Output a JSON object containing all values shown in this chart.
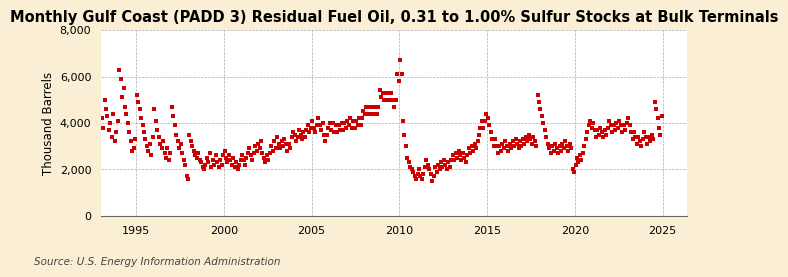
{
  "title": "Monthly Gulf Coast (PADD 3) Residual Fuel Oil, 0.31 to 1.00% Sulfur Stocks at Bulk Terminals",
  "ylabel": "Thousand Barrels",
  "source": "Source: U.S. Energy Information Administration",
  "figure_bg": "#faefd4",
  "plot_bg": "#ffffff",
  "marker_color": "#cc0000",
  "ylim": [
    0,
    8000
  ],
  "yticks": [
    0,
    2000,
    4000,
    6000,
    8000
  ],
  "xticks_years": [
    1995,
    2000,
    2005,
    2010,
    2015,
    2020,
    2025
  ],
  "xlim_start": 1993,
  "xlim_end": 2026,
  "title_fontsize": 10.5,
  "ylabel_fontsize": 8.5,
  "tick_fontsize": 8,
  "source_fontsize": 7.5,
  "data": [
    [
      1993,
      1,
      4200
    ],
    [
      1993,
      2,
      3800
    ],
    [
      1993,
      3,
      5000
    ],
    [
      1993,
      4,
      4600
    ],
    [
      1993,
      5,
      4300
    ],
    [
      1993,
      6,
      3700
    ],
    [
      1993,
      7,
      4000
    ],
    [
      1993,
      8,
      3400
    ],
    [
      1993,
      9,
      4400
    ],
    [
      1993,
      10,
      3200
    ],
    [
      1993,
      11,
      3600
    ],
    [
      1993,
      12,
      4100
    ],
    [
      1994,
      1,
      6300
    ],
    [
      1994,
      2,
      5900
    ],
    [
      1994,
      3,
      5100
    ],
    [
      1994,
      4,
      5500
    ],
    [
      1994,
      5,
      4700
    ],
    [
      1994,
      6,
      4400
    ],
    [
      1994,
      7,
      4000
    ],
    [
      1994,
      8,
      3600
    ],
    [
      1994,
      9,
      3200
    ],
    [
      1994,
      10,
      2800
    ],
    [
      1994,
      11,
      2900
    ],
    [
      1994,
      12,
      3300
    ],
    [
      1995,
      1,
      5200
    ],
    [
      1995,
      2,
      4900
    ],
    [
      1995,
      3,
      4600
    ],
    [
      1995,
      4,
      4200
    ],
    [
      1995,
      5,
      3900
    ],
    [
      1995,
      6,
      3600
    ],
    [
      1995,
      7,
      3300
    ],
    [
      1995,
      8,
      3000
    ],
    [
      1995,
      9,
      2800
    ],
    [
      1995,
      10,
      3100
    ],
    [
      1995,
      11,
      2600
    ],
    [
      1995,
      12,
      3400
    ],
    [
      1996,
      1,
      4600
    ],
    [
      1996,
      2,
      4100
    ],
    [
      1996,
      3,
      3700
    ],
    [
      1996,
      4,
      3400
    ],
    [
      1996,
      5,
      3100
    ],
    [
      1996,
      6,
      2900
    ],
    [
      1996,
      7,
      3200
    ],
    [
      1996,
      8,
      2700
    ],
    [
      1996,
      9,
      2500
    ],
    [
      1996,
      10,
      2900
    ],
    [
      1996,
      11,
      2400
    ],
    [
      1996,
      12,
      2700
    ],
    [
      1997,
      1,
      4700
    ],
    [
      1997,
      2,
      4300
    ],
    [
      1997,
      3,
      3900
    ],
    [
      1997,
      4,
      3500
    ],
    [
      1997,
      5,
      3200
    ],
    [
      1997,
      6,
      2900
    ],
    [
      1997,
      7,
      3100
    ],
    [
      1997,
      8,
      2700
    ],
    [
      1997,
      9,
      2400
    ],
    [
      1997,
      10,
      2200
    ],
    [
      1997,
      11,
      1700
    ],
    [
      1997,
      12,
      1600
    ],
    [
      1998,
      1,
      3500
    ],
    [
      1998,
      2,
      3200
    ],
    [
      1998,
      3,
      3000
    ],
    [
      1998,
      4,
      2800
    ],
    [
      1998,
      5,
      2600
    ],
    [
      1998,
      6,
      2500
    ],
    [
      1998,
      7,
      2700
    ],
    [
      1998,
      8,
      2400
    ],
    [
      1998,
      9,
      2300
    ],
    [
      1998,
      10,
      2100
    ],
    [
      1998,
      11,
      2000
    ],
    [
      1998,
      12,
      2200
    ],
    [
      1999,
      1,
      2500
    ],
    [
      1999,
      2,
      2300
    ],
    [
      1999,
      3,
      2700
    ],
    [
      1999,
      4,
      2100
    ],
    [
      1999,
      5,
      2400
    ],
    [
      1999,
      6,
      2200
    ],
    [
      1999,
      7,
      2600
    ],
    [
      1999,
      8,
      2300
    ],
    [
      1999,
      9,
      2100
    ],
    [
      1999,
      10,
      2400
    ],
    [
      1999,
      11,
      2200
    ],
    [
      1999,
      12,
      2600
    ],
    [
      2000,
      1,
      2800
    ],
    [
      2000,
      2,
      2500
    ],
    [
      2000,
      3,
      2300
    ],
    [
      2000,
      4,
      2600
    ],
    [
      2000,
      5,
      2400
    ],
    [
      2000,
      6,
      2200
    ],
    [
      2000,
      7,
      2500
    ],
    [
      2000,
      8,
      2100
    ],
    [
      2000,
      9,
      2300
    ],
    [
      2000,
      10,
      2000
    ],
    [
      2000,
      11,
      2200
    ],
    [
      2000,
      12,
      2400
    ],
    [
      2001,
      1,
      2600
    ],
    [
      2001,
      2,
      2400
    ],
    [
      2001,
      3,
      2200
    ],
    [
      2001,
      4,
      2500
    ],
    [
      2001,
      5,
      2700
    ],
    [
      2001,
      6,
      2900
    ],
    [
      2001,
      7,
      2600
    ],
    [
      2001,
      8,
      2400
    ],
    [
      2001,
      9,
      2700
    ],
    [
      2001,
      10,
      3000
    ],
    [
      2001,
      11,
      2800
    ],
    [
      2001,
      12,
      3100
    ],
    [
      2002,
      1,
      2900
    ],
    [
      2002,
      2,
      3200
    ],
    [
      2002,
      3,
      2700
    ],
    [
      2002,
      4,
      2500
    ],
    [
      2002,
      5,
      2300
    ],
    [
      2002,
      6,
      2600
    ],
    [
      2002,
      7,
      2400
    ],
    [
      2002,
      8,
      2700
    ],
    [
      2002,
      9,
      3000
    ],
    [
      2002,
      10,
      2800
    ],
    [
      2002,
      11,
      3200
    ],
    [
      2002,
      12,
      2900
    ],
    [
      2003,
      1,
      3400
    ],
    [
      2003,
      2,
      3100
    ],
    [
      2003,
      3,
      2900
    ],
    [
      2003,
      4,
      3200
    ],
    [
      2003,
      5,
      3000
    ],
    [
      2003,
      6,
      3300
    ],
    [
      2003,
      7,
      3100
    ],
    [
      2003,
      8,
      2800
    ],
    [
      2003,
      9,
      3100
    ],
    [
      2003,
      10,
      2900
    ],
    [
      2003,
      11,
      3400
    ],
    [
      2003,
      12,
      3600
    ],
    [
      2004,
      1,
      3500
    ],
    [
      2004,
      2,
      3200
    ],
    [
      2004,
      3,
      3400
    ],
    [
      2004,
      4,
      3700
    ],
    [
      2004,
      5,
      3500
    ],
    [
      2004,
      6,
      3300
    ],
    [
      2004,
      7,
      3600
    ],
    [
      2004,
      8,
      3400
    ],
    [
      2004,
      9,
      3700
    ],
    [
      2004,
      10,
      3900
    ],
    [
      2004,
      11,
      3600
    ],
    [
      2004,
      12,
      3800
    ],
    [
      2005,
      1,
      4100
    ],
    [
      2005,
      2,
      3800
    ],
    [
      2005,
      3,
      3600
    ],
    [
      2005,
      4,
      3900
    ],
    [
      2005,
      5,
      4200
    ],
    [
      2005,
      6,
      3900
    ],
    [
      2005,
      7,
      3700
    ],
    [
      2005,
      8,
      4000
    ],
    [
      2005,
      9,
      3500
    ],
    [
      2005,
      10,
      3200
    ],
    [
      2005,
      11,
      3500
    ],
    [
      2005,
      12,
      3800
    ],
    [
      2006,
      1,
      4000
    ],
    [
      2006,
      2,
      3700
    ],
    [
      2006,
      3,
      4000
    ],
    [
      2006,
      4,
      3600
    ],
    [
      2006,
      5,
      3900
    ],
    [
      2006,
      6,
      3600
    ],
    [
      2006,
      7,
      3900
    ],
    [
      2006,
      8,
      3700
    ],
    [
      2006,
      9,
      4000
    ],
    [
      2006,
      10,
      3700
    ],
    [
      2006,
      11,
      4000
    ],
    [
      2006,
      12,
      3800
    ],
    [
      2007,
      1,
      4100
    ],
    [
      2007,
      2,
      3900
    ],
    [
      2007,
      3,
      4200
    ],
    [
      2007,
      4,
      3800
    ],
    [
      2007,
      5,
      4100
    ],
    [
      2007,
      6,
      3800
    ],
    [
      2007,
      7,
      4100
    ],
    [
      2007,
      8,
      3900
    ],
    [
      2007,
      9,
      4200
    ],
    [
      2007,
      10,
      3900
    ],
    [
      2007,
      11,
      4200
    ],
    [
      2007,
      12,
      4500
    ],
    [
      2008,
      1,
      4400
    ],
    [
      2008,
      2,
      4700
    ],
    [
      2008,
      3,
      4400
    ],
    [
      2008,
      4,
      4700
    ],
    [
      2008,
      5,
      4400
    ],
    [
      2008,
      6,
      4700
    ],
    [
      2008,
      7,
      4400
    ],
    [
      2008,
      8,
      4700
    ],
    [
      2008,
      9,
      4400
    ],
    [
      2008,
      10,
      4700
    ],
    [
      2008,
      11,
      5400
    ],
    [
      2008,
      12,
      5100
    ],
    [
      2009,
      1,
      5300
    ],
    [
      2009,
      2,
      5000
    ],
    [
      2009,
      3,
      5300
    ],
    [
      2009,
      4,
      5000
    ],
    [
      2009,
      5,
      5300
    ],
    [
      2009,
      6,
      5000
    ],
    [
      2009,
      7,
      5300
    ],
    [
      2009,
      8,
      5000
    ],
    [
      2009,
      9,
      4700
    ],
    [
      2009,
      10,
      5000
    ],
    [
      2009,
      11,
      6100
    ],
    [
      2009,
      12,
      5800
    ],
    [
      2010,
      1,
      6700
    ],
    [
      2010,
      2,
      6100
    ],
    [
      2010,
      3,
      4100
    ],
    [
      2010,
      4,
      3500
    ],
    [
      2010,
      5,
      3000
    ],
    [
      2010,
      6,
      2500
    ],
    [
      2010,
      7,
      2300
    ],
    [
      2010,
      8,
      2100
    ],
    [
      2010,
      9,
      2000
    ],
    [
      2010,
      10,
      1900
    ],
    [
      2010,
      11,
      1700
    ],
    [
      2010,
      12,
      1600
    ],
    [
      2011,
      1,
      1800
    ],
    [
      2011,
      2,
      2000
    ],
    [
      2011,
      3,
      1700
    ],
    [
      2011,
      4,
      1600
    ],
    [
      2011,
      5,
      1800
    ],
    [
      2011,
      6,
      2100
    ],
    [
      2011,
      7,
      2400
    ],
    [
      2011,
      8,
      2200
    ],
    [
      2011,
      9,
      2000
    ],
    [
      2011,
      10,
      1800
    ],
    [
      2011,
      11,
      1500
    ],
    [
      2011,
      12,
      1700
    ],
    [
      2012,
      1,
      2100
    ],
    [
      2012,
      2,
      1900
    ],
    [
      2012,
      3,
      2200
    ],
    [
      2012,
      4,
      2000
    ],
    [
      2012,
      5,
      2300
    ],
    [
      2012,
      6,
      2100
    ],
    [
      2012,
      7,
      2400
    ],
    [
      2012,
      8,
      2200
    ],
    [
      2012,
      9,
      2000
    ],
    [
      2012,
      10,
      2300
    ],
    [
      2012,
      11,
      2100
    ],
    [
      2012,
      12,
      2400
    ],
    [
      2013,
      1,
      2600
    ],
    [
      2013,
      2,
      2400
    ],
    [
      2013,
      3,
      2700
    ],
    [
      2013,
      4,
      2500
    ],
    [
      2013,
      5,
      2800
    ],
    [
      2013,
      6,
      2600
    ],
    [
      2013,
      7,
      2400
    ],
    [
      2013,
      8,
      2700
    ],
    [
      2013,
      9,
      2500
    ],
    [
      2013,
      10,
      2300
    ],
    [
      2013,
      11,
      2600
    ],
    [
      2013,
      12,
      2900
    ],
    [
      2014,
      1,
      2700
    ],
    [
      2014,
      2,
      3000
    ],
    [
      2014,
      3,
      2800
    ],
    [
      2014,
      4,
      3100
    ],
    [
      2014,
      5,
      2900
    ],
    [
      2014,
      6,
      3200
    ],
    [
      2014,
      7,
      3500
    ],
    [
      2014,
      8,
      3800
    ],
    [
      2014,
      9,
      4100
    ],
    [
      2014,
      10,
      3800
    ],
    [
      2014,
      11,
      4100
    ],
    [
      2014,
      12,
      4400
    ],
    [
      2015,
      1,
      4200
    ],
    [
      2015,
      2,
      3900
    ],
    [
      2015,
      3,
      3600
    ],
    [
      2015,
      4,
      3300
    ],
    [
      2015,
      5,
      3000
    ],
    [
      2015,
      6,
      3300
    ],
    [
      2015,
      7,
      3000
    ],
    [
      2015,
      8,
      2700
    ],
    [
      2015,
      9,
      3000
    ],
    [
      2015,
      10,
      2800
    ],
    [
      2015,
      11,
      3100
    ],
    [
      2015,
      12,
      2900
    ],
    [
      2016,
      1,
      3200
    ],
    [
      2016,
      2,
      3000
    ],
    [
      2016,
      3,
      2800
    ],
    [
      2016,
      4,
      3100
    ],
    [
      2016,
      5,
      2900
    ],
    [
      2016,
      6,
      3200
    ],
    [
      2016,
      7,
      3000
    ],
    [
      2016,
      8,
      3300
    ],
    [
      2016,
      9,
      3100
    ],
    [
      2016,
      10,
      2900
    ],
    [
      2016,
      11,
      3200
    ],
    [
      2016,
      12,
      3000
    ],
    [
      2017,
      1,
      3300
    ],
    [
      2017,
      2,
      3100
    ],
    [
      2017,
      3,
      3400
    ],
    [
      2017,
      4,
      3200
    ],
    [
      2017,
      5,
      3500
    ],
    [
      2017,
      6,
      3300
    ],
    [
      2017,
      7,
      3100
    ],
    [
      2017,
      8,
      3400
    ],
    [
      2017,
      9,
      3200
    ],
    [
      2017,
      10,
      3000
    ],
    [
      2017,
      11,
      5200
    ],
    [
      2017,
      12,
      4900
    ],
    [
      2018,
      1,
      4600
    ],
    [
      2018,
      2,
      4300
    ],
    [
      2018,
      3,
      4000
    ],
    [
      2018,
      4,
      3700
    ],
    [
      2018,
      5,
      3400
    ],
    [
      2018,
      6,
      3100
    ],
    [
      2018,
      7,
      2900
    ],
    [
      2018,
      8,
      2700
    ],
    [
      2018,
      9,
      3000
    ],
    [
      2018,
      10,
      2800
    ],
    [
      2018,
      11,
      3100
    ],
    [
      2018,
      12,
      2900
    ],
    [
      2019,
      1,
      2700
    ],
    [
      2019,
      2,
      3000
    ],
    [
      2019,
      3,
      2800
    ],
    [
      2019,
      4,
      3100
    ],
    [
      2019,
      5,
      2900
    ],
    [
      2019,
      6,
      3200
    ],
    [
      2019,
      7,
      3000
    ],
    [
      2019,
      8,
      2800
    ],
    [
      2019,
      9,
      3100
    ],
    [
      2019,
      10,
      2900
    ],
    [
      2019,
      11,
      2000
    ],
    [
      2019,
      12,
      1900
    ],
    [
      2020,
      1,
      2200
    ],
    [
      2020,
      2,
      2500
    ],
    [
      2020,
      3,
      2300
    ],
    [
      2020,
      4,
      2600
    ],
    [
      2020,
      5,
      2400
    ],
    [
      2020,
      6,
      2700
    ],
    [
      2020,
      7,
      3000
    ],
    [
      2020,
      8,
      3300
    ],
    [
      2020,
      9,
      3600
    ],
    [
      2020,
      10,
      3900
    ],
    [
      2020,
      11,
      4100
    ],
    [
      2020,
      12,
      3800
    ],
    [
      2021,
      1,
      4000
    ],
    [
      2021,
      2,
      3700
    ],
    [
      2021,
      3,
      3400
    ],
    [
      2021,
      4,
      3700
    ],
    [
      2021,
      5,
      3500
    ],
    [
      2021,
      6,
      3800
    ],
    [
      2021,
      7,
      3600
    ],
    [
      2021,
      8,
      3400
    ],
    [
      2021,
      9,
      3700
    ],
    [
      2021,
      10,
      3500
    ],
    [
      2021,
      11,
      3800
    ],
    [
      2021,
      12,
      4100
    ],
    [
      2022,
      1,
      3900
    ],
    [
      2022,
      2,
      3600
    ],
    [
      2022,
      3,
      3900
    ],
    [
      2022,
      4,
      3700
    ],
    [
      2022,
      5,
      4000
    ],
    [
      2022,
      6,
      3800
    ],
    [
      2022,
      7,
      4100
    ],
    [
      2022,
      8,
      3900
    ],
    [
      2022,
      9,
      3600
    ],
    [
      2022,
      10,
      3900
    ],
    [
      2022,
      11,
      3700
    ],
    [
      2022,
      12,
      4000
    ],
    [
      2023,
      1,
      4200
    ],
    [
      2023,
      2,
      3900
    ],
    [
      2023,
      3,
      3600
    ],
    [
      2023,
      4,
      3300
    ],
    [
      2023,
      5,
      3600
    ],
    [
      2023,
      6,
      3400
    ],
    [
      2023,
      7,
      3100
    ],
    [
      2023,
      8,
      3400
    ],
    [
      2023,
      9,
      3200
    ],
    [
      2023,
      10,
      3000
    ],
    [
      2023,
      11,
      3300
    ],
    [
      2023,
      12,
      3600
    ],
    [
      2024,
      1,
      3400
    ],
    [
      2024,
      2,
      3100
    ],
    [
      2024,
      3,
      3400
    ],
    [
      2024,
      4,
      3200
    ],
    [
      2024,
      5,
      3500
    ],
    [
      2024,
      6,
      3300
    ],
    [
      2024,
      7,
      4900
    ],
    [
      2024,
      8,
      4600
    ],
    [
      2024,
      9,
      4200
    ],
    [
      2024,
      10,
      3800
    ],
    [
      2024,
      11,
      3500
    ],
    [
      2024,
      12,
      4300
    ]
  ]
}
